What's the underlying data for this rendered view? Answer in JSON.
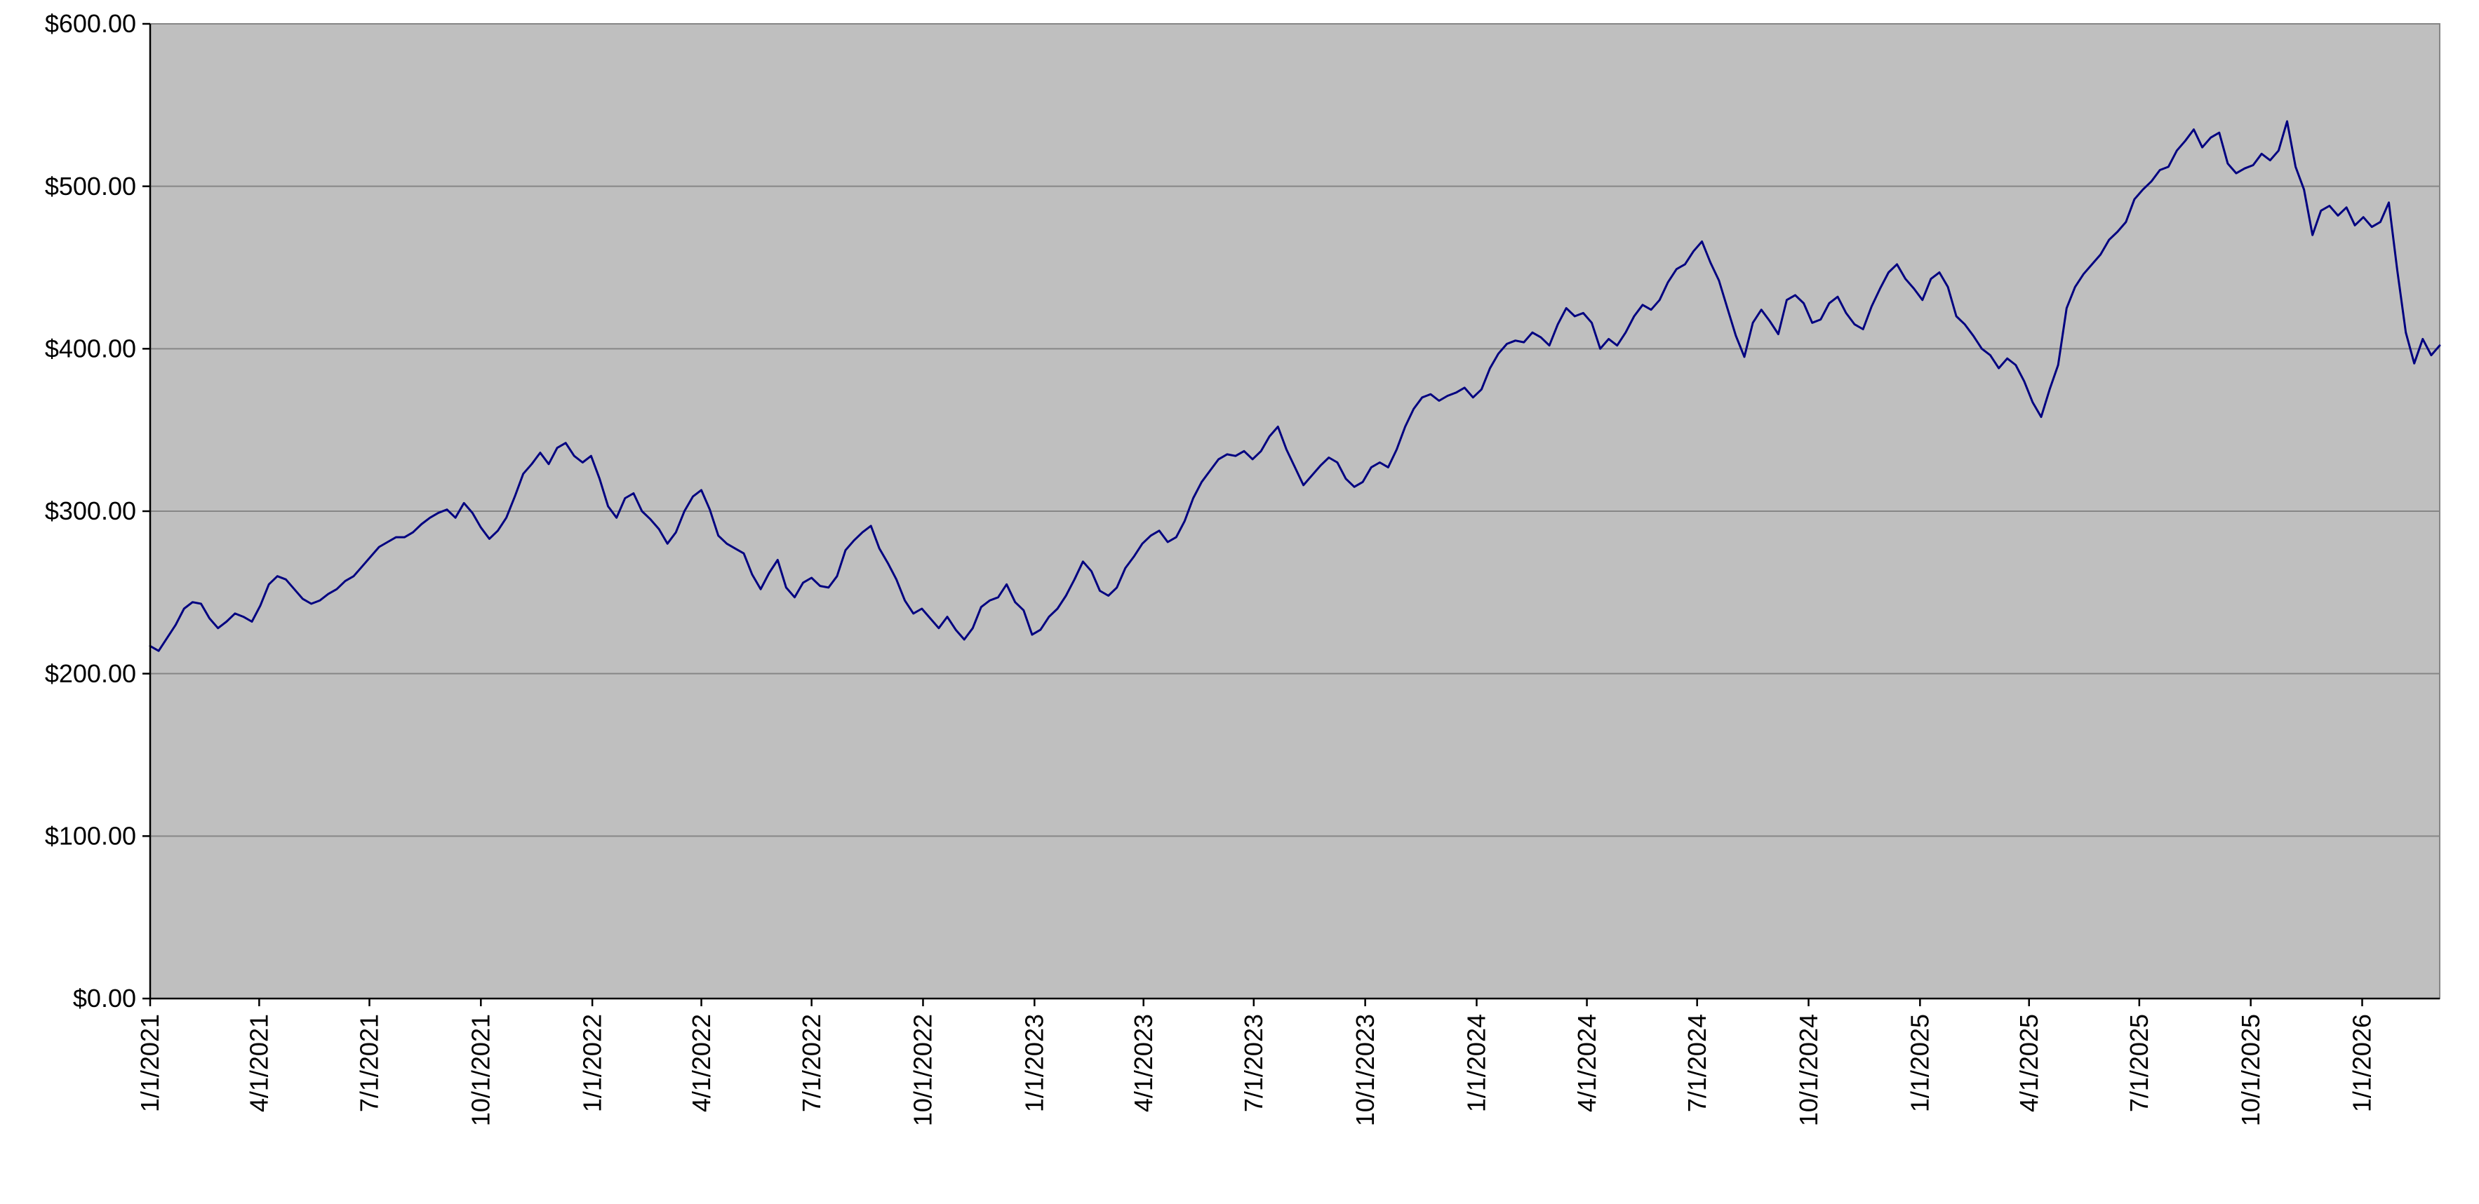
{
  "chart_data": {
    "type": "line",
    "title": "",
    "xlabel": "",
    "ylabel": "",
    "legend": "none",
    "grid": "horizontal",
    "series_name": "price",
    "series_color": "#000080",
    "plot_background": "#bfbfbf",
    "gridline_color": "#868686",
    "axis_color": "#000000",
    "start_date": "2021-01-01",
    "interval_days": 7,
    "y_axis": {
      "min": 0,
      "max": 600,
      "step": 100,
      "tick_labels": [
        "$0.00",
        "$100.00",
        "$200.00",
        "$300.00",
        "$400.00",
        "$500.00",
        "$600.00"
      ]
    },
    "x_axis": {
      "tick_labels": [
        "1/1/2021",
        "4/1/2021",
        "7/1/2021",
        "10/1/2021",
        "1/1/2022",
        "4/1/2022",
        "7/1/2022",
        "10/1/2022",
        "1/1/2023",
        "4/1/2023",
        "7/1/2023",
        "10/1/2023",
        "1/1/2024",
        "4/1/2024",
        "7/1/2024",
        "10/1/2024",
        "1/1/2025",
        "4/1/2025",
        "7/1/2025",
        "10/1/2025",
        "1/1/2026"
      ]
    },
    "values": [
      217,
      214,
      222,
      230,
      240,
      244,
      243,
      234,
      228,
      232,
      237,
      235,
      232,
      242,
      255,
      260,
      258,
      252,
      246,
      243,
      245,
      249,
      252,
      257,
      260,
      266,
      272,
      278,
      281,
      284,
      284,
      287,
      292,
      296,
      299,
      301,
      296,
      305,
      299,
      290,
      283,
      288,
      296,
      309,
      323,
      329,
      336,
      329,
      339,
      342,
      334,
      330,
      334,
      320,
      303,
      296,
      308,
      311,
      300,
      295,
      289,
      280,
      287,
      300,
      309,
      313,
      301,
      285,
      280,
      277,
      274,
      261,
      252,
      262,
      270,
      253,
      247,
      256,
      259,
      254,
      253,
      260,
      276,
      282,
      287,
      291,
      277,
      268,
      258,
      245,
      237,
      240,
      234,
      228,
      235,
      227,
      221,
      228,
      241,
      245,
      247,
      255,
      244,
      239,
      224,
      227,
      235,
      240,
      248,
      258,
      269,
      263,
      251,
      248,
      253,
      265,
      272,
      280,
      285,
      288,
      281,
      284,
      294,
      308,
      318,
      325,
      332,
      335,
      334,
      337,
      332,
      337,
      346,
      352,
      338,
      327,
      316,
      322,
      328,
      333,
      330,
      320,
      315,
      318,
      327,
      330,
      327,
      338,
      352,
      363,
      370,
      372,
      368,
      371,
      373,
      376,
      370,
      375,
      388,
      397,
      403,
      405,
      404,
      410,
      407,
      402,
      415,
      425,
      420,
      422,
      416,
      400,
      406,
      402,
      410,
      420,
      427,
      424,
      430,
      441,
      449,
      452,
      460,
      466,
      453,
      442,
      425,
      408,
      395,
      416,
      424,
      417,
      409,
      430,
      433,
      428,
      416,
      418,
      428,
      432,
      422,
      415,
      412,
      426,
      437,
      447,
      452,
      443,
      437,
      430,
      443,
      447,
      438,
      420,
      415,
      408,
      400,
      396,
      388,
      394,
      390,
      380,
      367,
      358,
      375,
      390,
      425,
      438,
      446,
      452,
      458,
      467,
      472,
      478,
      492,
      498,
      503,
      510,
      512,
      522,
      528,
      535,
      524,
      530,
      533,
      514,
      508,
      511,
      513,
      520,
      516,
      522,
      540,
      512,
      498,
      470,
      485,
      488,
      482,
      487,
      476,
      481,
      475,
      478,
      490,
      448,
      410,
      391,
      406,
      396,
      402
    ]
  }
}
